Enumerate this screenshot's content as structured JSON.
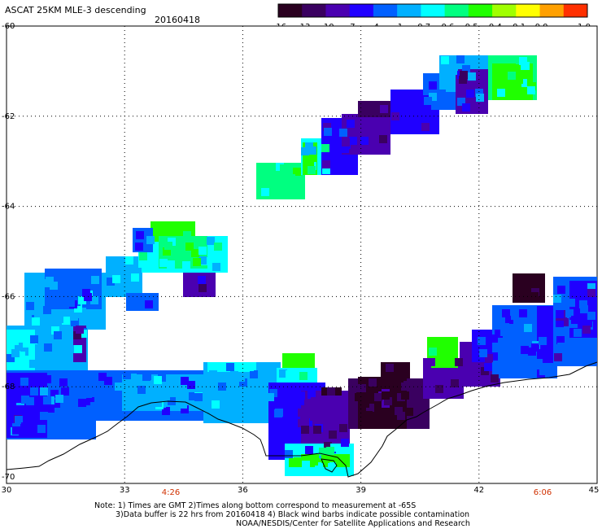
{
  "header": {
    "title": "ASCAT 25KM MLE-3 descending",
    "date": "20160418"
  },
  "colorbar": {
    "labels": [
      "-16",
      "-13",
      "-10",
      "-7",
      "-4",
      "-1",
      "-0.7",
      "-0.6",
      "-0.5",
      "-0.4",
      "-0.1",
      "0.0",
      "1.0"
    ],
    "colors": [
      "#2a0020",
      "#3a0060",
      "#4a00b0",
      "#2000ff",
      "#0060ff",
      "#00b0ff",
      "#00ffff",
      "#00ff80",
      "#20ff00",
      "#a0ff00",
      "#ffff00",
      "#ffa000",
      "#ff3000"
    ]
  },
  "axes": {
    "lat_labels": [
      "-60",
      "-62",
      "-64",
      "-66",
      "-68",
      "-70"
    ],
    "lon_labels": [
      "30",
      "33",
      "36",
      "39",
      "42",
      "45"
    ]
  },
  "time_labels": [
    "4:26",
    "6:06"
  ],
  "notes": {
    "line1": "Note: 1) Times are GMT 2)Times along bottom correspond to measurement at -65S",
    "line2": "3)Data buffer is 22 hrs from 20160418 4) Black wind barbs indicate possible contamination",
    "line3": "NOAA/NESDIS/Center for Satellite Applications and Research"
  },
  "style": {
    "time_label_color": "#d03000",
    "coast_color": "#000000"
  }
}
